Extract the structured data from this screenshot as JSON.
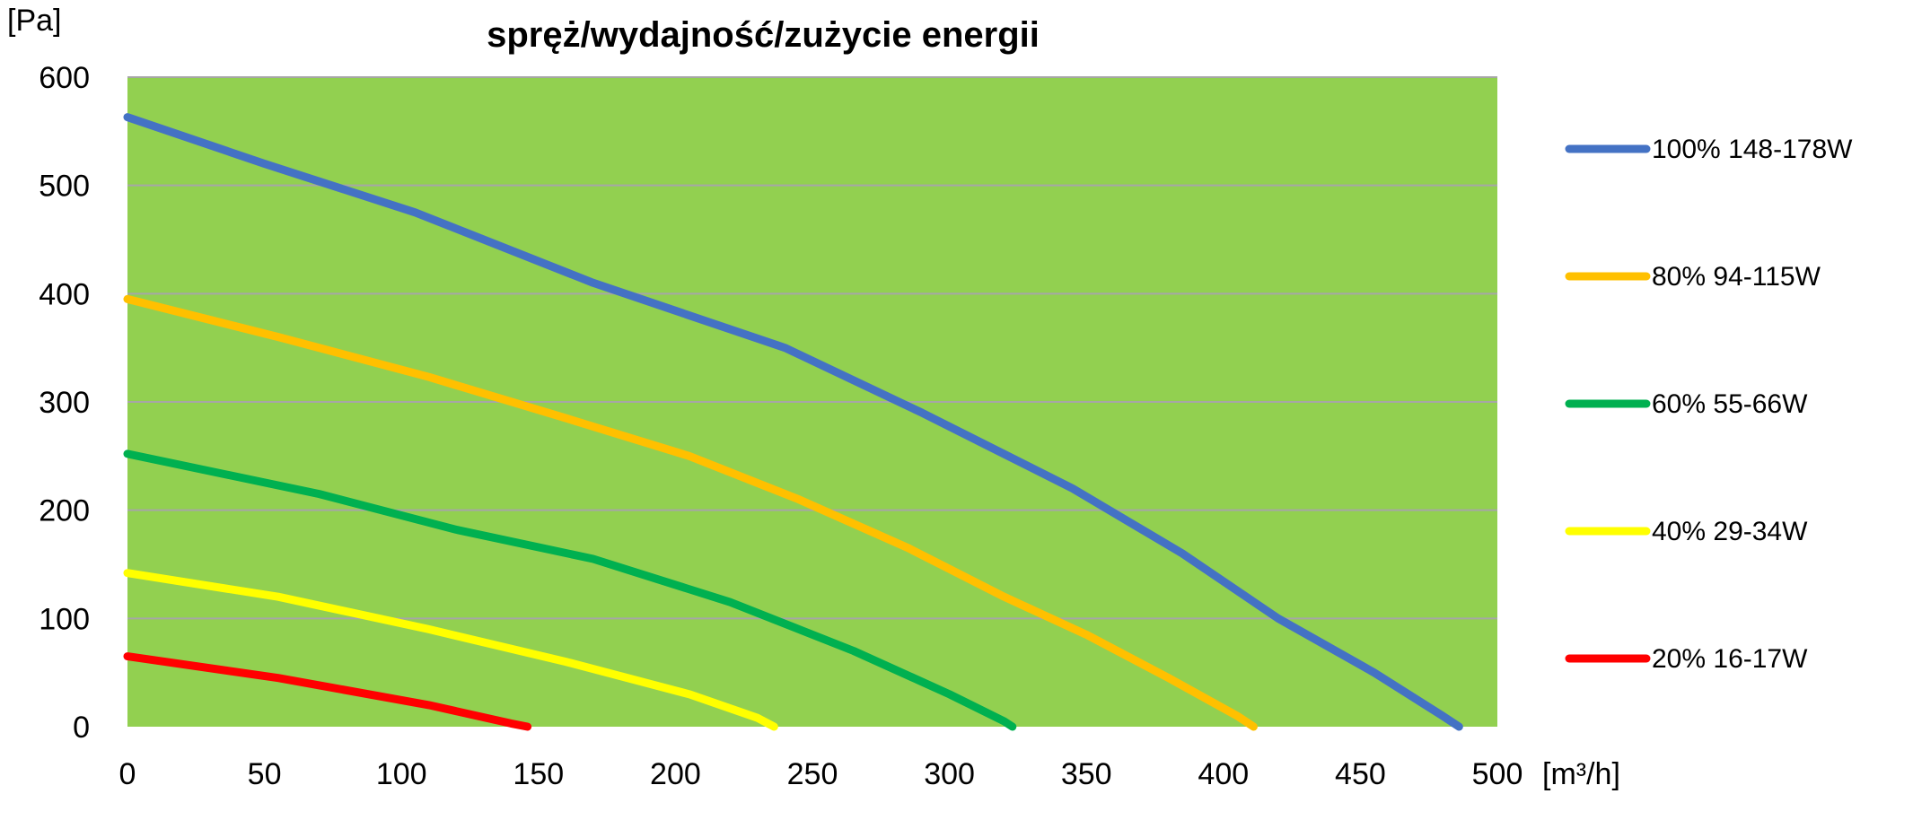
{
  "chart_data": {
    "type": "line",
    "title": "spręż/wydajność/zużycie energii",
    "xlabel": "[m³/h]",
    "ylabel": "[Pa]",
    "xlim": [
      0,
      500
    ],
    "ylim": [
      0,
      600
    ],
    "x_ticks": [
      0,
      50,
      100,
      150,
      200,
      250,
      300,
      350,
      400,
      450,
      500
    ],
    "y_ticks": [
      0,
      100,
      200,
      300,
      400,
      500,
      600
    ],
    "grid": true,
    "legend_position": "right",
    "plot_background": "#92D050",
    "grid_color": "#A6A6A6",
    "series": [
      {
        "name": "100% 148-178W",
        "color": "#4472C4",
        "points": [
          [
            0,
            563
          ],
          [
            50,
            520
          ],
          [
            105,
            475
          ],
          [
            170,
            410
          ],
          [
            240,
            350
          ],
          [
            290,
            290
          ],
          [
            345,
            220
          ],
          [
            385,
            160
          ],
          [
            420,
            100
          ],
          [
            455,
            50
          ],
          [
            480,
            10
          ],
          [
            486,
            0
          ]
        ]
      },
      {
        "name": "80% 94-115W",
        "color": "#FFC000",
        "points": [
          [
            0,
            395
          ],
          [
            55,
            360
          ],
          [
            110,
            323
          ],
          [
            160,
            285
          ],
          [
            205,
            250
          ],
          [
            245,
            210
          ],
          [
            285,
            165
          ],
          [
            320,
            120
          ],
          [
            350,
            85
          ],
          [
            380,
            45
          ],
          [
            405,
            10
          ],
          [
            411,
            0
          ]
        ]
      },
      {
        "name": "60% 55-66W",
        "color": "#00B050",
        "points": [
          [
            0,
            252
          ],
          [
            70,
            215
          ],
          [
            120,
            182
          ],
          [
            170,
            155
          ],
          [
            220,
            115
          ],
          [
            265,
            70
          ],
          [
            300,
            30
          ],
          [
            320,
            5
          ],
          [
            323,
            0
          ]
        ]
      },
      {
        "name": "40% 29-34W",
        "color": "#FFFF00",
        "points": [
          [
            0,
            142
          ],
          [
            55,
            120
          ],
          [
            110,
            90
          ],
          [
            160,
            60
          ],
          [
            205,
            30
          ],
          [
            230,
            8
          ],
          [
            236,
            0
          ]
        ]
      },
      {
        "name": "20% 16-17W",
        "color": "#FF0000",
        "points": [
          [
            0,
            65
          ],
          [
            55,
            45
          ],
          [
            110,
            20
          ],
          [
            140,
            3
          ],
          [
            146,
            0
          ]
        ]
      }
    ]
  }
}
